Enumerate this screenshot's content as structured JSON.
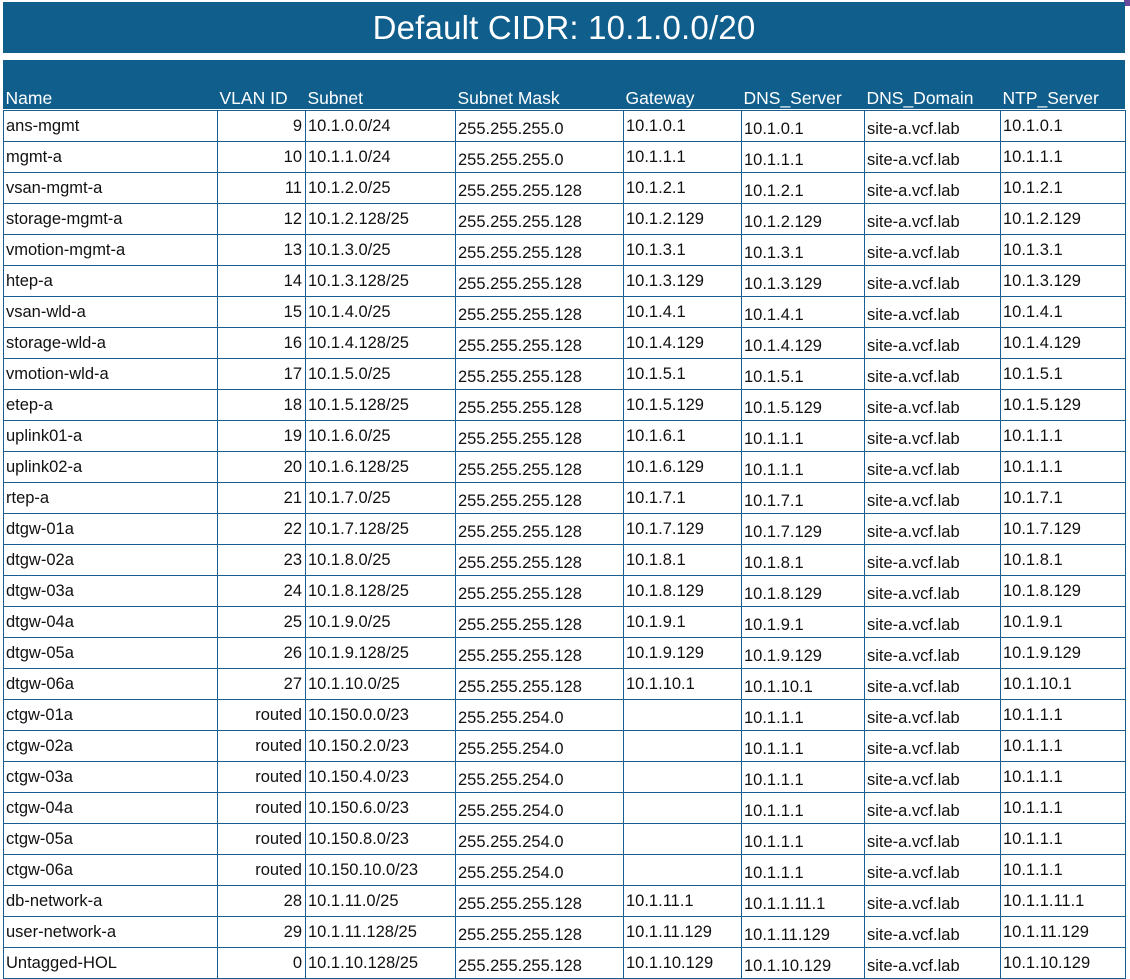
{
  "title": "Default CIDR: 10.1.0.0/20",
  "colors": {
    "banner_bg": "#0f5e8c",
    "banner_text": "#ffffff",
    "grid_line": "#1c5d8f",
    "accent_corner": "#6a4a9c"
  },
  "table": {
    "headers": [
      "Name",
      "VLAN ID",
      "Subnet",
      "Subnet Mask",
      "Gateway",
      "DNS_Server",
      "DNS_Domain",
      "NTP_Server"
    ],
    "rows": [
      [
        "ans-mgmt",
        "9",
        "10.1.0.0/24",
        "255.255.255.0",
        "10.1.0.1",
        "10.1.0.1",
        "site-a.vcf.lab",
        "10.1.0.1"
      ],
      [
        "mgmt-a",
        "10",
        "10.1.1.0/24",
        "255.255.255.0",
        "10.1.1.1",
        "10.1.1.1",
        "site-a.vcf.lab",
        "10.1.1.1"
      ],
      [
        "vsan-mgmt-a",
        "11",
        "10.1.2.0/25",
        "255.255.255.128",
        "10.1.2.1",
        "10.1.2.1",
        "site-a.vcf.lab",
        "10.1.2.1"
      ],
      [
        "storage-mgmt-a",
        "12",
        "10.1.2.128/25",
        "255.255.255.128",
        "10.1.2.129",
        "10.1.2.129",
        "site-a.vcf.lab",
        "10.1.2.129"
      ],
      [
        "vmotion-mgmt-a",
        "13",
        "10.1.3.0/25",
        "255.255.255.128",
        "10.1.3.1",
        "10.1.3.1",
        "site-a.vcf.lab",
        "10.1.3.1"
      ],
      [
        "htep-a",
        "14",
        "10.1.3.128/25",
        "255.255.255.128",
        "10.1.3.129",
        "10.1.3.129",
        "site-a.vcf.lab",
        "10.1.3.129"
      ],
      [
        "vsan-wld-a",
        "15",
        "10.1.4.0/25",
        "255.255.255.128",
        "10.1.4.1",
        "10.1.4.1",
        "site-a.vcf.lab",
        "10.1.4.1"
      ],
      [
        "storage-wld-a",
        "16",
        "10.1.4.128/25",
        "255.255.255.128",
        "10.1.4.129",
        "10.1.4.129",
        "site-a.vcf.lab",
        "10.1.4.129"
      ],
      [
        "vmotion-wld-a",
        "17",
        "10.1.5.0/25",
        "255.255.255.128",
        "10.1.5.1",
        "10.1.5.1",
        "site-a.vcf.lab",
        "10.1.5.1"
      ],
      [
        "etep-a",
        "18",
        "10.1.5.128/25",
        "255.255.255.128",
        "10.1.5.129",
        "10.1.5.129",
        "site-a.vcf.lab",
        "10.1.5.129"
      ],
      [
        "uplink01-a",
        "19",
        "10.1.6.0/25",
        "255.255.255.128",
        "10.1.6.1",
        "10.1.1.1",
        "site-a.vcf.lab",
        "10.1.1.1"
      ],
      [
        "uplink02-a",
        "20",
        "10.1.6.128/25",
        "255.255.255.128",
        "10.1.6.129",
        "10.1.1.1",
        "site-a.vcf.lab",
        "10.1.1.1"
      ],
      [
        "rtep-a",
        "21",
        "10.1.7.0/25",
        "255.255.255.128",
        "10.1.7.1",
        "10.1.7.1",
        "site-a.vcf.lab",
        "10.1.7.1"
      ],
      [
        "dtgw-01a",
        "22",
        "10.1.7.128/25",
        "255.255.255.128",
        "10.1.7.129",
        "10.1.7.129",
        "site-a.vcf.lab",
        "10.1.7.129"
      ],
      [
        "dtgw-02a",
        "23",
        "10.1.8.0/25",
        "255.255.255.128",
        "10.1.8.1",
        "10.1.8.1",
        "site-a.vcf.lab",
        "10.1.8.1"
      ],
      [
        "dtgw-03a",
        "24",
        "10.1.8.128/25",
        "255.255.255.128",
        "10.1.8.129",
        "10.1.8.129",
        "site-a.vcf.lab",
        "10.1.8.129"
      ],
      [
        "dtgw-04a",
        "25",
        "10.1.9.0/25",
        "255.255.255.128",
        "10.1.9.1",
        "10.1.9.1",
        "site-a.vcf.lab",
        "10.1.9.1"
      ],
      [
        "dtgw-05a",
        "26",
        "10.1.9.128/25",
        "255.255.255.128",
        "10.1.9.129",
        "10.1.9.129",
        "site-a.vcf.lab",
        "10.1.9.129"
      ],
      [
        "dtgw-06a",
        "27",
        "10.1.10.0/25",
        "255.255.255.128",
        "10.1.10.1",
        "10.1.10.1",
        "site-a.vcf.lab",
        "10.1.10.1"
      ],
      [
        "ctgw-01a",
        "routed",
        "10.150.0.0/23",
        "255.255.254.0",
        "",
        "10.1.1.1",
        "site-a.vcf.lab",
        "10.1.1.1"
      ],
      [
        "ctgw-02a",
        "routed",
        "10.150.2.0/23",
        "255.255.254.0",
        "",
        "10.1.1.1",
        "site-a.vcf.lab",
        "10.1.1.1"
      ],
      [
        "ctgw-03a",
        "routed",
        "10.150.4.0/23",
        "255.255.254.0",
        "",
        "10.1.1.1",
        "site-a.vcf.lab",
        "10.1.1.1"
      ],
      [
        "ctgw-04a",
        "routed",
        "10.150.6.0/23",
        "255.255.254.0",
        "",
        "10.1.1.1",
        "site-a.vcf.lab",
        "10.1.1.1"
      ],
      [
        "ctgw-05a",
        "routed",
        "10.150.8.0/23",
        "255.255.254.0",
        "",
        "10.1.1.1",
        "site-a.vcf.lab",
        "10.1.1.1"
      ],
      [
        "ctgw-06a",
        "routed",
        "10.150.10.0/23",
        "255.255.254.0",
        "",
        "10.1.1.1",
        "site-a.vcf.lab",
        "10.1.1.1"
      ],
      [
        "db-network-a",
        "28",
        "10.1.11.0/25",
        "255.255.255.128",
        "10.1.11.1",
        "10.1.1.11.1",
        "site-a.vcf.lab",
        "10.1.1.11.1"
      ],
      [
        "user-network-a",
        "29",
        "10.1.11.128/25",
        "255.255.255.128",
        "10.1.11.129",
        "10.1.11.129",
        "site-a.vcf.lab",
        "10.1.11.129"
      ],
      [
        "Untagged-HOL",
        "0",
        "10.1.10.128/25",
        "255.255.255.128",
        "10.1.10.129",
        "10.1.10.129",
        "site-a.vcf.lab",
        "10.1.10.129"
      ]
    ]
  }
}
